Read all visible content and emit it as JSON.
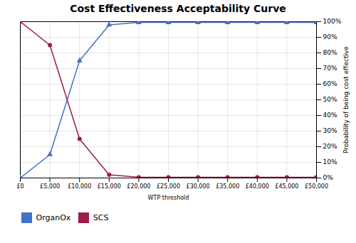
{
  "chart_data": {
    "type": "line",
    "title": "Cost Effectiveness Acceptability Curve",
    "xlabel": "WTP threshold",
    "ylabel": "Probability of being cost effective",
    "x": [
      0,
      5000,
      10000,
      15000,
      20000,
      25000,
      30000,
      35000,
      40000,
      45000,
      50000
    ],
    "series": [
      {
        "name": "OrganOx",
        "color": "#4472c4",
        "marker": "triangle",
        "values": [
          0.0,
          0.15,
          0.75,
          0.98,
          0.995,
          0.995,
          0.995,
          0.995,
          0.995,
          0.995,
          0.995
        ]
      },
      {
        "name": "SCS",
        "color": "#9b1b4b",
        "marker": "circle",
        "values": [
          1.0,
          0.85,
          0.25,
          0.02,
          0.005,
          0.005,
          0.005,
          0.005,
          0.005,
          0.005,
          0.005
        ]
      }
    ],
    "xlim": [
      0,
      50000
    ],
    "xticks": [
      {
        "value": 0,
        "label": "£0"
      },
      {
        "value": 5000,
        "label": "£5,000"
      },
      {
        "value": 10000,
        "label": "£10,000"
      },
      {
        "value": 15000,
        "label": "£15,000"
      },
      {
        "value": 20000,
        "label": "£20,000"
      },
      {
        "value": 25000,
        "label": "£25,000"
      },
      {
        "value": 30000,
        "label": "£30,000"
      },
      {
        "value": 35000,
        "label": "£35,000"
      },
      {
        "value": 40000,
        "label": "£40,000"
      },
      {
        "value": 45000,
        "label": "£45,000"
      },
      {
        "value": 50000,
        "label": "£50,000"
      }
    ],
    "ylim": [
      0,
      1.0
    ],
    "yticks": [
      {
        "value": 0.0,
        "label": "0%"
      },
      {
        "value": 0.1,
        "label": "10%"
      },
      {
        "value": 0.2,
        "label": "20%"
      },
      {
        "value": 0.3,
        "label": "30%"
      },
      {
        "value": 0.4,
        "label": "40%"
      },
      {
        "value": 0.5,
        "label": "50%"
      },
      {
        "value": 0.6,
        "label": "60%"
      },
      {
        "value": 0.7,
        "label": "70%"
      },
      {
        "value": 0.8,
        "label": "80%"
      },
      {
        "value": 0.9,
        "label": "90%"
      },
      {
        "value": 1.0,
        "label": "100%"
      }
    ],
    "grid": true,
    "legend": "bottom"
  }
}
